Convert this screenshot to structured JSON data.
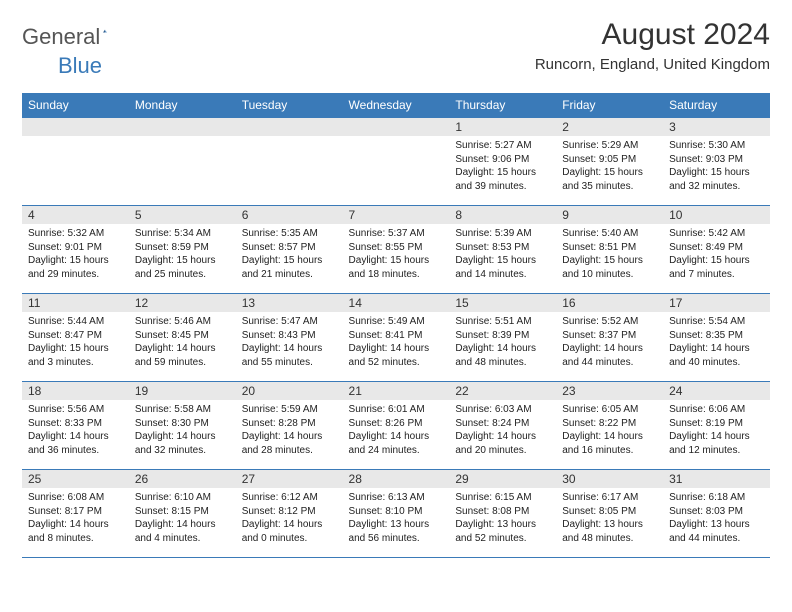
{
  "logo": {
    "text1": "General",
    "text2": "Blue"
  },
  "title": "August 2024",
  "location": "Runcorn, England, United Kingdom",
  "colors": {
    "header_bg": "#3a7ab8",
    "header_fg": "#ffffff",
    "daynum_bg": "#e8e8e8",
    "rule": "#3a7ab8",
    "text": "#222222",
    "logo_gray": "#555555",
    "logo_blue": "#3a7ab8"
  },
  "weekdays": [
    "Sunday",
    "Monday",
    "Tuesday",
    "Wednesday",
    "Thursday",
    "Friday",
    "Saturday"
  ],
  "weeks": [
    [
      {
        "blank": true
      },
      {
        "blank": true
      },
      {
        "blank": true
      },
      {
        "blank": true
      },
      {
        "n": "1",
        "sr": "Sunrise: 5:27 AM",
        "ss": "Sunset: 9:06 PM",
        "d1": "Daylight: 15 hours",
        "d2": "and 39 minutes."
      },
      {
        "n": "2",
        "sr": "Sunrise: 5:29 AM",
        "ss": "Sunset: 9:05 PM",
        "d1": "Daylight: 15 hours",
        "d2": "and 35 minutes."
      },
      {
        "n": "3",
        "sr": "Sunrise: 5:30 AM",
        "ss": "Sunset: 9:03 PM",
        "d1": "Daylight: 15 hours",
        "d2": "and 32 minutes."
      }
    ],
    [
      {
        "n": "4",
        "sr": "Sunrise: 5:32 AM",
        "ss": "Sunset: 9:01 PM",
        "d1": "Daylight: 15 hours",
        "d2": "and 29 minutes."
      },
      {
        "n": "5",
        "sr": "Sunrise: 5:34 AM",
        "ss": "Sunset: 8:59 PM",
        "d1": "Daylight: 15 hours",
        "d2": "and 25 minutes."
      },
      {
        "n": "6",
        "sr": "Sunrise: 5:35 AM",
        "ss": "Sunset: 8:57 PM",
        "d1": "Daylight: 15 hours",
        "d2": "and 21 minutes."
      },
      {
        "n": "7",
        "sr": "Sunrise: 5:37 AM",
        "ss": "Sunset: 8:55 PM",
        "d1": "Daylight: 15 hours",
        "d2": "and 18 minutes."
      },
      {
        "n": "8",
        "sr": "Sunrise: 5:39 AM",
        "ss": "Sunset: 8:53 PM",
        "d1": "Daylight: 15 hours",
        "d2": "and 14 minutes."
      },
      {
        "n": "9",
        "sr": "Sunrise: 5:40 AM",
        "ss": "Sunset: 8:51 PM",
        "d1": "Daylight: 15 hours",
        "d2": "and 10 minutes."
      },
      {
        "n": "10",
        "sr": "Sunrise: 5:42 AM",
        "ss": "Sunset: 8:49 PM",
        "d1": "Daylight: 15 hours",
        "d2": "and 7 minutes."
      }
    ],
    [
      {
        "n": "11",
        "sr": "Sunrise: 5:44 AM",
        "ss": "Sunset: 8:47 PM",
        "d1": "Daylight: 15 hours",
        "d2": "and 3 minutes."
      },
      {
        "n": "12",
        "sr": "Sunrise: 5:46 AM",
        "ss": "Sunset: 8:45 PM",
        "d1": "Daylight: 14 hours",
        "d2": "and 59 minutes."
      },
      {
        "n": "13",
        "sr": "Sunrise: 5:47 AM",
        "ss": "Sunset: 8:43 PM",
        "d1": "Daylight: 14 hours",
        "d2": "and 55 minutes."
      },
      {
        "n": "14",
        "sr": "Sunrise: 5:49 AM",
        "ss": "Sunset: 8:41 PM",
        "d1": "Daylight: 14 hours",
        "d2": "and 52 minutes."
      },
      {
        "n": "15",
        "sr": "Sunrise: 5:51 AM",
        "ss": "Sunset: 8:39 PM",
        "d1": "Daylight: 14 hours",
        "d2": "and 48 minutes."
      },
      {
        "n": "16",
        "sr": "Sunrise: 5:52 AM",
        "ss": "Sunset: 8:37 PM",
        "d1": "Daylight: 14 hours",
        "d2": "and 44 minutes."
      },
      {
        "n": "17",
        "sr": "Sunrise: 5:54 AM",
        "ss": "Sunset: 8:35 PM",
        "d1": "Daylight: 14 hours",
        "d2": "and 40 minutes."
      }
    ],
    [
      {
        "n": "18",
        "sr": "Sunrise: 5:56 AM",
        "ss": "Sunset: 8:33 PM",
        "d1": "Daylight: 14 hours",
        "d2": "and 36 minutes."
      },
      {
        "n": "19",
        "sr": "Sunrise: 5:58 AM",
        "ss": "Sunset: 8:30 PM",
        "d1": "Daylight: 14 hours",
        "d2": "and 32 minutes."
      },
      {
        "n": "20",
        "sr": "Sunrise: 5:59 AM",
        "ss": "Sunset: 8:28 PM",
        "d1": "Daylight: 14 hours",
        "d2": "and 28 minutes."
      },
      {
        "n": "21",
        "sr": "Sunrise: 6:01 AM",
        "ss": "Sunset: 8:26 PM",
        "d1": "Daylight: 14 hours",
        "d2": "and 24 minutes."
      },
      {
        "n": "22",
        "sr": "Sunrise: 6:03 AM",
        "ss": "Sunset: 8:24 PM",
        "d1": "Daylight: 14 hours",
        "d2": "and 20 minutes."
      },
      {
        "n": "23",
        "sr": "Sunrise: 6:05 AM",
        "ss": "Sunset: 8:22 PM",
        "d1": "Daylight: 14 hours",
        "d2": "and 16 minutes."
      },
      {
        "n": "24",
        "sr": "Sunrise: 6:06 AM",
        "ss": "Sunset: 8:19 PM",
        "d1": "Daylight: 14 hours",
        "d2": "and 12 minutes."
      }
    ],
    [
      {
        "n": "25",
        "sr": "Sunrise: 6:08 AM",
        "ss": "Sunset: 8:17 PM",
        "d1": "Daylight: 14 hours",
        "d2": "and 8 minutes."
      },
      {
        "n": "26",
        "sr": "Sunrise: 6:10 AM",
        "ss": "Sunset: 8:15 PM",
        "d1": "Daylight: 14 hours",
        "d2": "and 4 minutes."
      },
      {
        "n": "27",
        "sr": "Sunrise: 6:12 AM",
        "ss": "Sunset: 8:12 PM",
        "d1": "Daylight: 14 hours",
        "d2": "and 0 minutes."
      },
      {
        "n": "28",
        "sr": "Sunrise: 6:13 AM",
        "ss": "Sunset: 8:10 PM",
        "d1": "Daylight: 13 hours",
        "d2": "and 56 minutes."
      },
      {
        "n": "29",
        "sr": "Sunrise: 6:15 AM",
        "ss": "Sunset: 8:08 PM",
        "d1": "Daylight: 13 hours",
        "d2": "and 52 minutes."
      },
      {
        "n": "30",
        "sr": "Sunrise: 6:17 AM",
        "ss": "Sunset: 8:05 PM",
        "d1": "Daylight: 13 hours",
        "d2": "and 48 minutes."
      },
      {
        "n": "31",
        "sr": "Sunrise: 6:18 AM",
        "ss": "Sunset: 8:03 PM",
        "d1": "Daylight: 13 hours",
        "d2": "and 44 minutes."
      }
    ]
  ]
}
